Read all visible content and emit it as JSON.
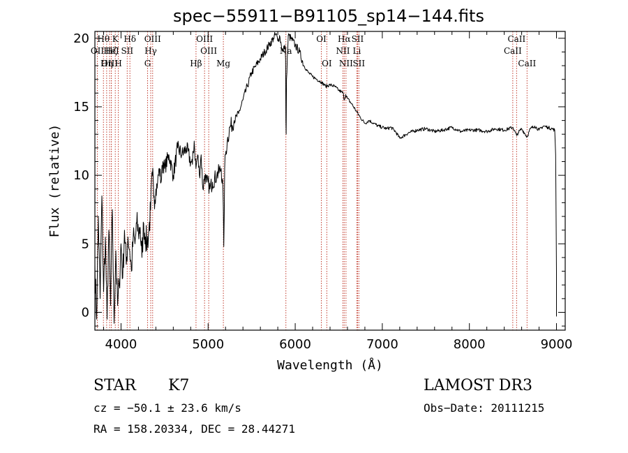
{
  "chart_data": {
    "type": "line",
    "title": "spec−55911−B91105_sp14−144.fits",
    "xlabel": "Wavelength (Å)",
    "ylabel": "Flux (relative)",
    "xlim": [
      3700,
      9100
    ],
    "ylim": [
      -1.3,
      20.5
    ],
    "xticks": [
      4000,
      5000,
      6000,
      7000,
      8000,
      9000
    ],
    "yticks": [
      0,
      5,
      10,
      15,
      20
    ],
    "series": [
      {
        "name": "spectrum",
        "x": [
          3700,
          3720,
          3740,
          3760,
          3780,
          3800,
          3820,
          3840,
          3860,
          3880,
          3900,
          3920,
          3940,
          3960,
          3980,
          4000,
          4020,
          4040,
          4060,
          4080,
          4100,
          4120,
          4140,
          4160,
          4180,
          4200,
          4220,
          4240,
          4260,
          4280,
          4300,
          4320,
          4340,
          4360,
          4380,
          4400,
          4420,
          4440,
          4460,
          4480,
          4500,
          4550,
          4600,
          4650,
          4700,
          4750,
          4800,
          4820,
          4840,
          4860,
          4880,
          4900,
          4920,
          4940,
          4960,
          4980,
          5000,
          5020,
          5050,
          5100,
          5150,
          5170,
          5180,
          5190,
          5200,
          5220,
          5250,
          5300,
          5350,
          5400,
          5450,
          5500,
          5550,
          5600,
          5650,
          5700,
          5750,
          5780,
          5800,
          5820,
          5840,
          5860,
          5880,
          5890,
          5893,
          5896,
          5900,
          5920,
          5950,
          6000,
          6050,
          6100,
          6150,
          6200,
          6250,
          6300,
          6350,
          6400,
          6450,
          6500,
          6550,
          6563,
          6580,
          6600,
          6650,
          6700,
          6750,
          6800,
          6850,
          6900,
          6950,
          7000,
          7050,
          7100,
          7150,
          7200,
          7300,
          7400,
          7500,
          7600,
          7700,
          7800,
          7900,
          8000,
          8100,
          8200,
          8300,
          8400,
          8500,
          8542,
          8560,
          8600,
          8662,
          8700,
          8750,
          8800,
          8850,
          8900,
          8950,
          8980,
          8990,
          9000
        ],
        "values": [
          3.5,
          -0.5,
          7.0,
          1.0,
          8.5,
          1.5,
          5.5,
          -0.5,
          6.0,
          0.5,
          7.5,
          -0.8,
          4.5,
          0.5,
          2.0,
          5.0,
          2.5,
          6.0,
          3.5,
          5.5,
          4.5,
          3.0,
          5.5,
          5.0,
          6.5,
          5.8,
          6.2,
          4.0,
          6.5,
          5.5,
          5.0,
          6.0,
          7.5,
          10.0,
          8.5,
          9.0,
          9.5,
          10.5,
          9.5,
          11.0,
          10.5,
          11.5,
          10.0,
          12.0,
          11.5,
          12.0,
          11.0,
          10.8,
          12.5,
          10.5,
          11.5,
          10.0,
          11.5,
          9.0,
          10.0,
          9.5,
          9.5,
          9.0,
          9.5,
          10.0,
          10.5,
          9.0,
          4.8,
          10.5,
          11.5,
          12.5,
          13.5,
          14.0,
          14.5,
          15.5,
          16.5,
          17.5,
          18.0,
          18.5,
          19.0,
          19.5,
          20.0,
          20.3,
          19.8,
          20.2,
          19.5,
          19.0,
          19.5,
          18.5,
          14.0,
          13.0,
          17.0,
          20.2,
          20.0,
          19.5,
          19.0,
          18.0,
          17.5,
          17.2,
          17.0,
          16.8,
          16.5,
          16.6,
          16.5,
          16.2,
          16.0,
          15.5,
          15.9,
          15.6,
          15.2,
          14.7,
          14.2,
          13.8,
          14.0,
          13.8,
          13.6,
          13.5,
          13.4,
          13.5,
          13.2,
          12.7,
          13.1,
          13.3,
          13.4,
          13.2,
          13.3,
          13.5,
          13.2,
          13.3,
          13.3,
          13.2,
          13.4,
          13.3,
          13.5,
          12.9,
          13.1,
          13.4,
          12.8,
          13.4,
          13.6,
          13.3,
          13.6,
          13.5,
          13.4,
          13.3,
          11.5,
          3.0
        ]
      }
    ],
    "spectral_lines": [
      {
        "label": "Hθ",
        "x": 3798,
        "row": 0
      },
      {
        "label": "OII",
        "x": 3728,
        "row": 1
      },
      {
        "label": "OIII",
        "x": 3869,
        "row": 2
      },
      {
        "label": "Hζ",
        "x": 3889,
        "row": 1
      },
      {
        "label": "K",
        "x": 3934,
        "row": 0
      },
      {
        "label": "Hη",
        "x": 3835,
        "row": 2
      },
      {
        "label": "HeI",
        "x": 3889,
        "row": 1
      },
      {
        "label": "H",
        "x": 3969,
        "row": 2
      },
      {
        "label": "SII",
        "x": 4071,
        "row": 1
      },
      {
        "label": "Hδ",
        "x": 4102,
        "row": 0
      },
      {
        "label": "OIII",
        "x": 4363,
        "row": 0
      },
      {
        "label": "Hγ",
        "x": 4341,
        "row": 1
      },
      {
        "label": "G",
        "x": 4305,
        "row": 2
      },
      {
        "label": "Hβ",
        "x": 4861,
        "row": 2
      },
      {
        "label": "OIII",
        "x": 4959,
        "row": 0
      },
      {
        "label": "OIII",
        "x": 5007,
        "row": 1
      },
      {
        "label": "Mg",
        "x": 5175,
        "row": 2
      },
      {
        "label": "Na",
        "x": 5893,
        "row": 1
      },
      {
        "label": "OI",
        "x": 6300,
        "row": 0
      },
      {
        "label": "OI",
        "x": 6363,
        "row": 2
      },
      {
        "label": "Hα",
        "x": 6563,
        "row": 0
      },
      {
        "label": "NII",
        "x": 6548,
        "row": 1
      },
      {
        "label": "NII",
        "x": 6583,
        "row": 2
      },
      {
        "label": "SII",
        "x": 6716,
        "row": 0
      },
      {
        "label": "Li",
        "x": 6708,
        "row": 1
      },
      {
        "label": "SII",
        "x": 6731,
        "row": 2
      },
      {
        "label": "CaII",
        "x": 8542,
        "row": 0
      },
      {
        "label": "CaII",
        "x": 8498,
        "row": 1
      },
      {
        "label": "CaII",
        "x": 8662,
        "row": 2
      }
    ]
  },
  "info": {
    "class": "STAR",
    "subclass": "K7",
    "survey": "LAMOST DR3",
    "cz": "cz = −50.1 ± 23.6 km/s",
    "obs_date": "Obs−Date: 20111215",
    "coords": "RA = 158.20334, DEC =  28.44271"
  }
}
